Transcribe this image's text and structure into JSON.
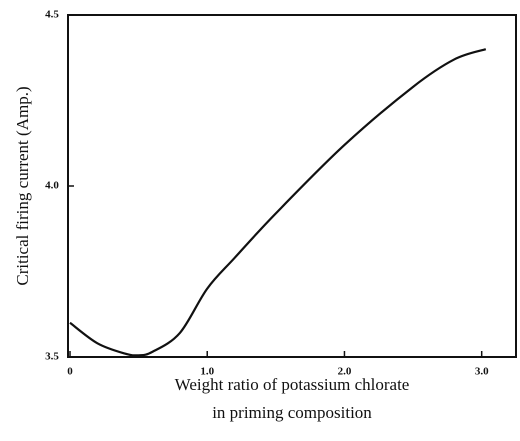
{
  "chart_data": {
    "type": "line",
    "ylabel": "Critical firing current (Amp.)",
    "xlabel": [
      "Weight ratio of potassium chlorate",
      "in priming composition"
    ],
    "x": [
      0,
      0.2,
      0.4,
      0.5,
      0.6,
      0.8,
      1.0,
      1.2,
      1.5,
      2.0,
      2.5,
      2.8,
      3.03
    ],
    "series": [
      {
        "color": "#111111",
        "values": [
          3.6,
          3.54,
          3.51,
          3.505,
          3.515,
          3.57,
          3.7,
          3.79,
          3.92,
          4.12,
          4.29,
          4.37,
          4.4
        ]
      }
    ],
    "xlim": [
      0,
      3.25
    ],
    "ylim": [
      3.5,
      4.5
    ],
    "xticks": [
      {
        "value": 0,
        "label": "0"
      },
      {
        "value": 1,
        "label": "1.0"
      },
      {
        "value": 2,
        "label": "2.0"
      },
      {
        "value": 3,
        "label": "3.0"
      }
    ],
    "yticks": [
      {
        "value": 3.5,
        "label": "3.5"
      },
      {
        "value": 4,
        "label": "4.0"
      },
      {
        "value": 4.5,
        "label": "4.5"
      }
    ]
  }
}
